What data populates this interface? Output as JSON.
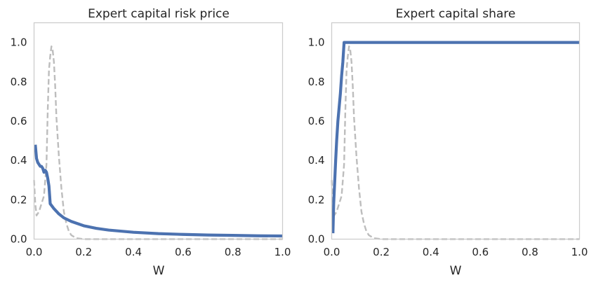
{
  "colors": {
    "main": "#4c72b0",
    "dist": "#bdbdbd",
    "frame": "#cccccc",
    "text": "#262626"
  },
  "chart_data": [
    {
      "type": "line",
      "title": "Expert capital risk price",
      "xlabel": "W",
      "ylabel": "",
      "xlim": [
        0,
        1.0
      ],
      "ylim": [
        0,
        1.1
      ],
      "grid": false,
      "xticks": [
        "0.0",
        "0.2",
        "0.4",
        "0.6",
        "0.8",
        "1.0"
      ],
      "yticks": [
        "0.0",
        "0.2",
        "0.4",
        "0.6",
        "0.8",
        "1.0"
      ],
      "series": [
        {
          "style": "solid",
          "color": "#4c72b0",
          "x": [
            0.005,
            0.01,
            0.015,
            0.02,
            0.025,
            0.03,
            0.035,
            0.04,
            0.045,
            0.05,
            0.055,
            0.06,
            0.065,
            0.08,
            0.1,
            0.12,
            0.15,
            0.2,
            0.25,
            0.3,
            0.4,
            0.5,
            0.6,
            0.7,
            0.8,
            0.9,
            1.0
          ],
          "y": [
            0.48,
            0.41,
            0.39,
            0.38,
            0.37,
            0.37,
            0.36,
            0.34,
            0.35,
            0.34,
            0.31,
            0.27,
            0.18,
            0.155,
            0.128,
            0.108,
            0.09,
            0.068,
            0.055,
            0.046,
            0.035,
            0.028,
            0.024,
            0.021,
            0.019,
            0.017,
            0.016
          ]
        },
        {
          "style": "dashed",
          "color": "#bdbdbd",
          "x": [
            0.0,
            0.005,
            0.01,
            0.02,
            0.03,
            0.04,
            0.05,
            0.055,
            0.06,
            0.065,
            0.07,
            0.075,
            0.08,
            0.085,
            0.09,
            0.1,
            0.11,
            0.12,
            0.13,
            0.14,
            0.15,
            0.17,
            0.2,
            0.25,
            1.0
          ],
          "y": [
            0.3,
            0.18,
            0.12,
            0.14,
            0.18,
            0.22,
            0.38,
            0.65,
            0.86,
            0.93,
            0.98,
            0.96,
            0.9,
            0.78,
            0.62,
            0.42,
            0.26,
            0.14,
            0.08,
            0.04,
            0.02,
            0.005,
            0.0,
            0.0,
            0.0
          ]
        }
      ]
    },
    {
      "type": "line",
      "title": "Expert capital share",
      "xlabel": "W",
      "ylabel": "",
      "xlim": [
        0,
        1.0
      ],
      "ylim": [
        0,
        1.1
      ],
      "grid": false,
      "xticks": [
        "0.0",
        "0.2",
        "0.4",
        "0.6",
        "0.8",
        "1.0"
      ],
      "yticks": [
        "0.0",
        "0.2",
        "0.4",
        "0.6",
        "0.8",
        "1.0"
      ],
      "series": [
        {
          "style": "solid",
          "color": "#4c72b0",
          "x": [
            0.005,
            0.008,
            0.012,
            0.016,
            0.02,
            0.025,
            0.03,
            0.035,
            0.04,
            0.045,
            0.05,
            0.055,
            0.1,
            0.3,
            0.5,
            0.7,
            1.0
          ],
          "y": [
            0.03,
            0.18,
            0.29,
            0.4,
            0.5,
            0.6,
            0.67,
            0.74,
            0.83,
            0.9,
            1.0,
            1.0,
            1.0,
            1.0,
            1.0,
            1.0,
            1.0
          ]
        },
        {
          "style": "dashed",
          "color": "#bdbdbd",
          "x": [
            0.0,
            0.005,
            0.01,
            0.02,
            0.03,
            0.04,
            0.05,
            0.055,
            0.06,
            0.065,
            0.07,
            0.075,
            0.08,
            0.085,
            0.09,
            0.1,
            0.11,
            0.12,
            0.13,
            0.14,
            0.15,
            0.17,
            0.2,
            0.25,
            1.0
          ],
          "y": [
            0.3,
            0.18,
            0.12,
            0.14,
            0.18,
            0.22,
            0.38,
            0.65,
            0.86,
            0.93,
            0.98,
            0.96,
            0.9,
            0.78,
            0.62,
            0.42,
            0.26,
            0.14,
            0.08,
            0.04,
            0.02,
            0.005,
            0.0,
            0.0,
            0.0
          ]
        }
      ]
    }
  ]
}
